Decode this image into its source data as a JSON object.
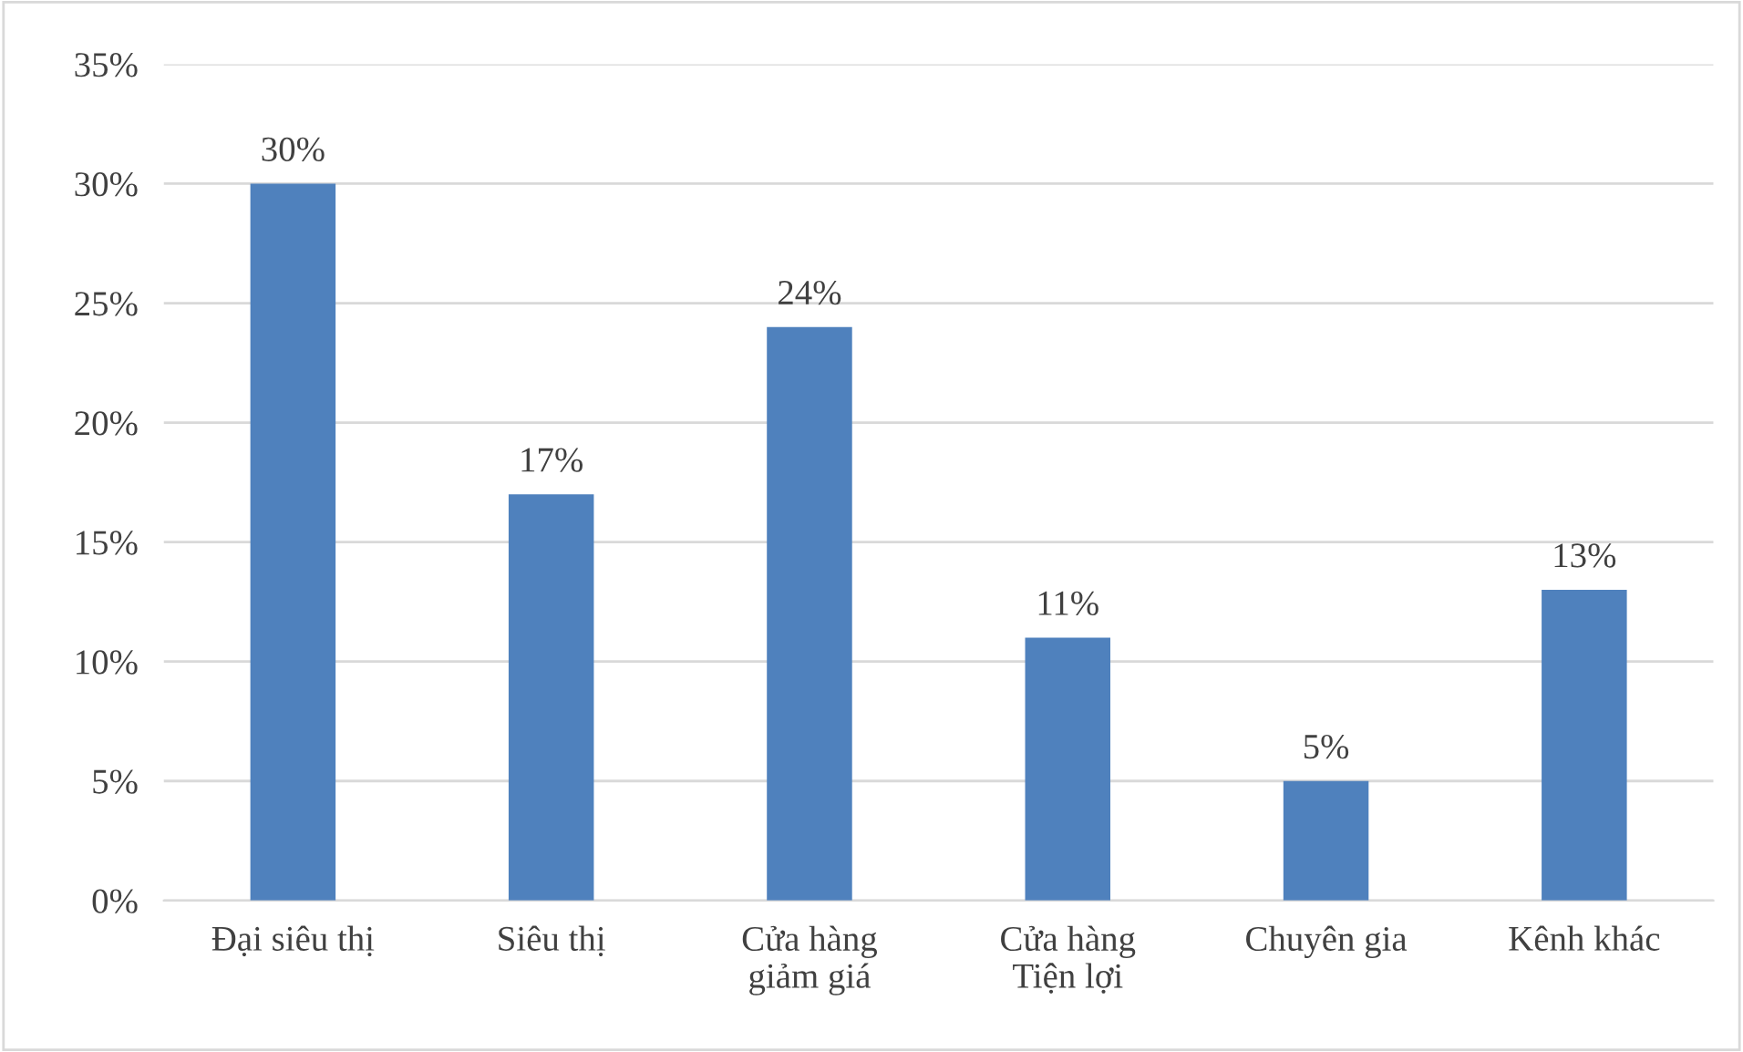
{
  "chart_data": {
    "type": "bar",
    "categories": [
      "Đại siêu thị",
      "Siêu thị",
      "Cửa hàng\ngiảm giá",
      "Cửa hàng\nTiện lợi",
      "Chuyên gia",
      "Kênh khác"
    ],
    "values": [
      30,
      17,
      24,
      11,
      5,
      13
    ],
    "value_labels": [
      "30%",
      "17%",
      "24%",
      "11%",
      "5%",
      "13%"
    ],
    "color": "#4f81bd",
    "ylim": [
      0,
      35
    ],
    "yticks": [
      {
        "value": 0,
        "label": "0%"
      },
      {
        "value": 5,
        "label": "5%"
      },
      {
        "value": 10,
        "label": "10%"
      },
      {
        "value": 15,
        "label": "15%"
      },
      {
        "value": 20,
        "label": "20%"
      },
      {
        "value": 25,
        "label": "25%"
      },
      {
        "value": 30,
        "label": "30%"
      },
      {
        "value": 35,
        "label": "35%"
      }
    ],
    "grid": "y",
    "legend": false
  }
}
